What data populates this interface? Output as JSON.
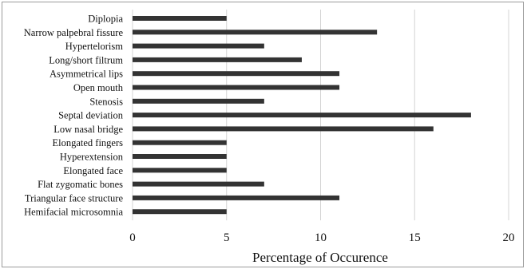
{
  "chart_data": {
    "type": "bar",
    "orientation": "horizontal",
    "title": "",
    "xlabel": "Percentage of Occurence",
    "ylabel": "",
    "xlim": [
      0,
      20
    ],
    "xticks": [
      0,
      5,
      10,
      15,
      20
    ],
    "grid": "vertical gridlines",
    "legend": "none",
    "bar_color": "#333333",
    "categories": [
      "Diplopia",
      "Narrow palpebral fissure",
      "Hypertelorism",
      "Long/short filtrum",
      "Asymmetrical lips",
      "Open mouth",
      "Stenosis",
      "Septal deviation",
      "Low nasal bridge",
      "Elongated fingers",
      "Hyperextension",
      "Elongated face",
      "Flat zygomatic bones",
      "Triangular face structure",
      "Hemifacial microsomnia"
    ],
    "values": [
      5,
      13,
      7,
      9,
      11,
      11,
      7,
      18,
      16,
      5,
      5,
      5,
      7,
      11,
      5
    ]
  }
}
